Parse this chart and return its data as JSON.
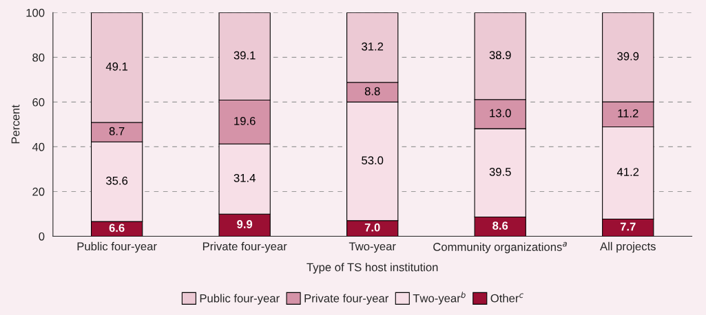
{
  "chart_data": {
    "type": "bar",
    "stacked": true,
    "xlabel": "Type of TS host institution",
    "ylabel": "Percent",
    "categories": [
      "Public four-year",
      "Private four-year",
      "Two-year",
      "Community organizations$^{a}$",
      "All projects"
    ],
    "series": [
      {
        "name": "Other$^{c}$",
        "color": "#9b0f33",
        "values": [
          6.6,
          9.9,
          7.0,
          8.6,
          7.7
        ],
        "value_labels": [
          "6.6",
          "9.9",
          "7.0",
          "8.6",
          "7.7"
        ]
      },
      {
        "name": "Two-year$^{b}$",
        "color": "#f7dfe7",
        "values": [
          35.6,
          31.4,
          53.0,
          39.5,
          41.2
        ],
        "value_labels": [
          "35.6",
          "31.4",
          "53.0",
          "39.5",
          "41.2"
        ]
      },
      {
        "name": "Private four-year",
        "color": "#d593a8",
        "values": [
          8.7,
          19.6,
          8.8,
          13.0,
          11.2
        ],
        "value_labels": [
          "8.7",
          "19.6",
          "8.8",
          "13.0",
          "11.2"
        ]
      },
      {
        "name": "Public four-year",
        "color": "#ecc9d4",
        "values": [
          49.1,
          39.1,
          31.2,
          38.9,
          39.9
        ],
        "value_labels": [
          "49.1",
          "39.1",
          "31.2",
          "38.9",
          "39.9"
        ]
      }
    ],
    "ylim": [
      0,
      100
    ],
    "yticks": [
      0,
      20,
      40,
      60,
      80,
      100
    ],
    "grid": "y",
    "legend": "bottom"
  }
}
